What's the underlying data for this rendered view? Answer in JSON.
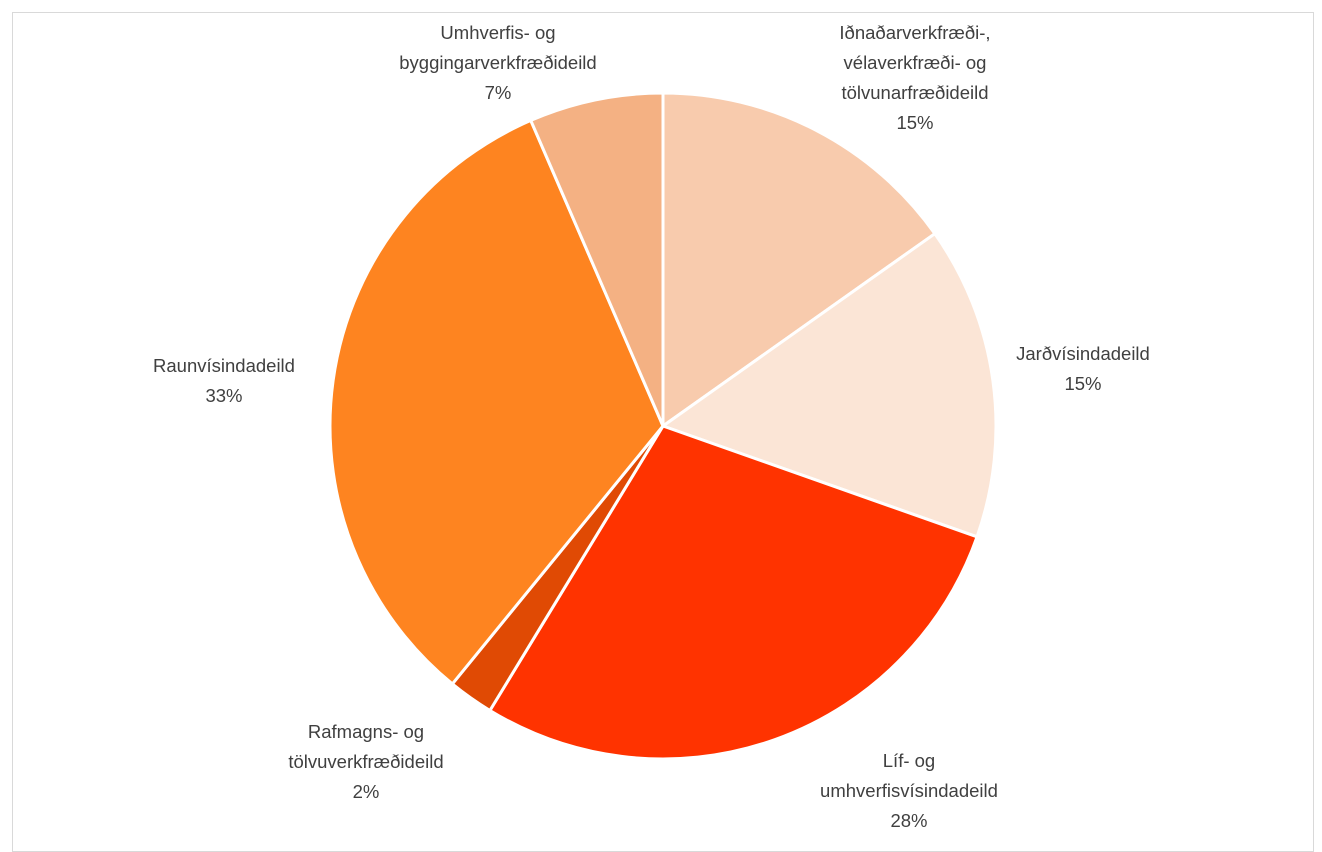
{
  "chart_data": {
    "type": "pie",
    "title": "",
    "legend": "none",
    "start_angle_deg": 0,
    "direction": "clockwise",
    "slices": [
      {
        "label_lines": [
          "Iðnaðarverkfræði-,",
          "vélaverkfræði- og",
          "tölvunarfræðideild"
        ],
        "percent_label": "15%",
        "value": 15.2,
        "color": "#F8CBAD"
      },
      {
        "label_lines": [
          "Jarðvísindadeild"
        ],
        "percent_label": "15%",
        "value": 15.2,
        "color": "#FBE5D6"
      },
      {
        "label_lines": [
          "Líf- og",
          "umhverfisvísindadeild"
        ],
        "percent_label": "28%",
        "value": 28.3,
        "color": "#FF3300"
      },
      {
        "label_lines": [
          "Rafmagns- og",
          "tölvuverkfræðideild"
        ],
        "percent_label": "2%",
        "value": 2.2,
        "color": "#E04A04"
      },
      {
        "label_lines": [
          "Raunvísindadeild"
        ],
        "percent_label": "33%",
        "value": 32.6,
        "color": "#FE8420"
      },
      {
        "label_lines": [
          "Umhverfis- og",
          "byggingarverkfræðideild"
        ],
        "percent_label": "7%",
        "value": 6.5,
        "color": "#F4B183"
      }
    ]
  }
}
